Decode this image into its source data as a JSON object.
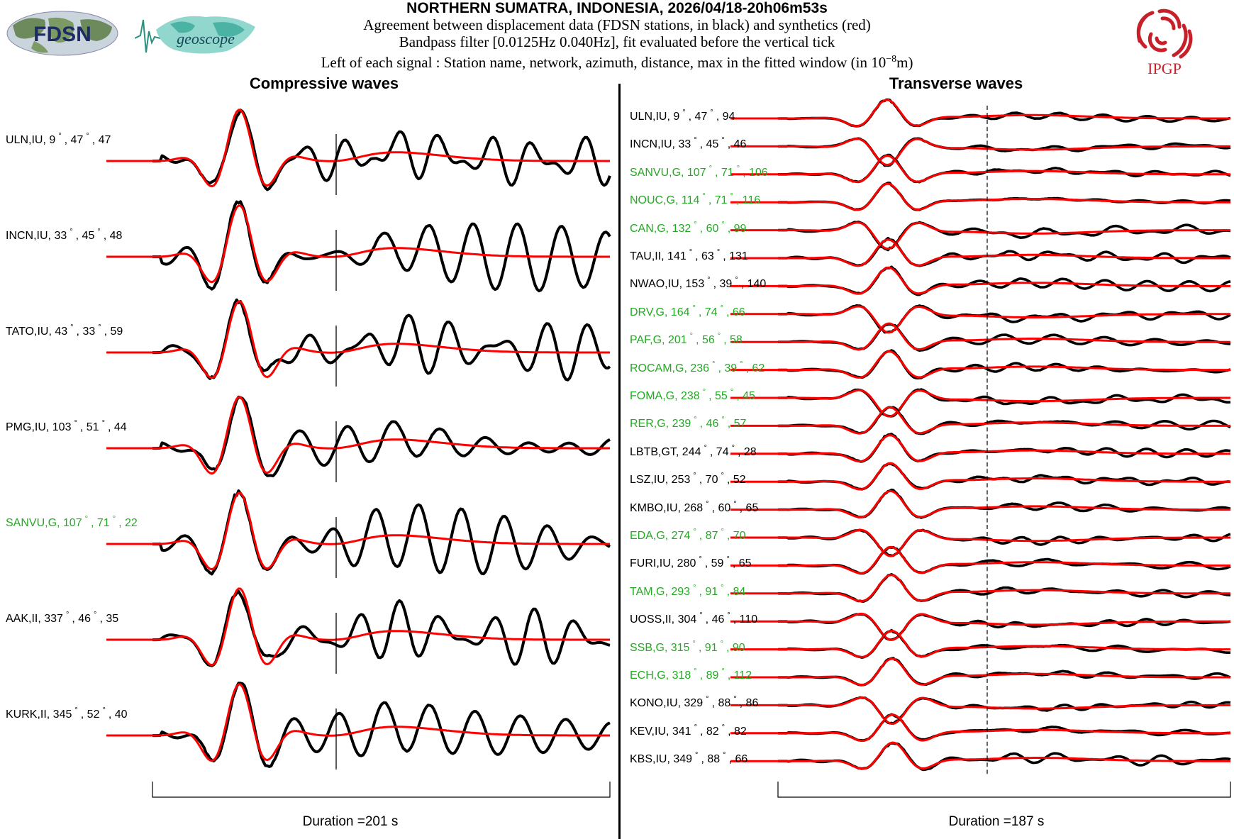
{
  "header": {
    "title": "NORTHERN SUMATRA, INDONESIA, 2026/04/18-20h06m53s",
    "line1": "Agreement between displacement data (FDSN stations, in black) and synthetics (red)",
    "line2": "Bandpass filter [0.0125Hz 0.040Hz], fit evaluated before the vertical tick",
    "line3": "Left of each signal : Station name, network, azimuth, distance, max in the fitted window (in 10",
    "line3_exp": "−8",
    "line3_end": "m)"
  },
  "logos": {
    "fdsn": "FDSN",
    "geoscope": "geoscope",
    "ipgp": "IPGP"
  },
  "colors": {
    "data": "#000000",
    "synthetic": "#ff0000",
    "geoscope_station": "#22aa22",
    "ipgp": "#c8202a",
    "geoscope_logo": "#3ab0a0"
  },
  "chart_data": [
    {
      "type": "line",
      "title": "Compressive waves",
      "duration_label": "Duration =201 s",
      "duration_s": 201,
      "series": [
        "data",
        "synthetic"
      ],
      "stations": [
        {
          "label": "ULN,IU, 9",
          "az": 9,
          "dist": 47,
          "max": 47,
          "color": "black"
        },
        {
          "label": "INCN,IU, 33",
          "az": 33,
          "dist": 45,
          "max": 48,
          "color": "black"
        },
        {
          "label": "TATO,IU, 43",
          "az": 43,
          "dist": 33,
          "max": 59,
          "color": "black"
        },
        {
          "label": "PMG,IU, 103",
          "az": 103,
          "dist": 51,
          "max": 44,
          "color": "black"
        },
        {
          "label": "SANVU,G, 107",
          "az": 107,
          "dist": 71,
          "max": 22,
          "color": "green"
        },
        {
          "label": "AAK,II, 337",
          "az": 337,
          "dist": 46,
          "max": 35,
          "color": "black"
        },
        {
          "label": "KURK,II, 345",
          "az": 345,
          "dist": 52,
          "max": 40,
          "color": "black"
        }
      ]
    },
    {
      "type": "line",
      "title": "Transverse waves",
      "duration_label": "Duration =187 s",
      "duration_s": 187,
      "series": [
        "data",
        "synthetic"
      ],
      "stations": [
        {
          "label": "ULN,IU, 9",
          "az": 9,
          "dist": 47,
          "max": 94,
          "color": "black"
        },
        {
          "label": "INCN,IU, 33",
          "az": 33,
          "dist": 45,
          "max": 46,
          "color": "black"
        },
        {
          "label": "SANVU,G, 107",
          "az": 107,
          "dist": 71,
          "max": 106,
          "color": "green"
        },
        {
          "label": "NOUC,G, 114",
          "az": 114,
          "dist": 71,
          "max": 116,
          "color": "green"
        },
        {
          "label": "CAN,G, 132",
          "az": 132,
          "dist": 60,
          "max": 99,
          "color": "green"
        },
        {
          "label": "TAU,II, 141",
          "az": 141,
          "dist": 63,
          "max": 131,
          "color": "black"
        },
        {
          "label": "NWAO,IU, 153",
          "az": 153,
          "dist": 39,
          "max": 140,
          "color": "black"
        },
        {
          "label": "DRV,G, 164",
          "az": 164,
          "dist": 74,
          "max": 66,
          "color": "green"
        },
        {
          "label": "PAF,G, 201",
          "az": 201,
          "dist": 56,
          "max": 58,
          "color": "green"
        },
        {
          "label": "ROCAM,G, 236",
          "az": 236,
          "dist": 39,
          "max": 62,
          "color": "green"
        },
        {
          "label": "FOMA,G, 238",
          "az": 238,
          "dist": 55,
          "max": 45,
          "color": "green"
        },
        {
          "label": "RER,G, 239",
          "az": 239,
          "dist": 46,
          "max": 57,
          "color": "green"
        },
        {
          "label": "LBTB,GT, 244",
          "az": 244,
          "dist": 74,
          "max": 28,
          "color": "black"
        },
        {
          "label": "LSZ,IU, 253",
          "az": 253,
          "dist": 70,
          "max": 52,
          "color": "black"
        },
        {
          "label": "KMBO,IU, 268",
          "az": 268,
          "dist": 60,
          "max": 65,
          "color": "black"
        },
        {
          "label": "EDA,G, 274",
          "az": 274,
          "dist": 87,
          "max": 70,
          "color": "green"
        },
        {
          "label": "FURI,IU, 280",
          "az": 280,
          "dist": 59,
          "max": 65,
          "color": "black"
        },
        {
          "label": "TAM,G, 293",
          "az": 293,
          "dist": 91,
          "max": 84,
          "color": "green"
        },
        {
          "label": "UOSS,II, 304",
          "az": 304,
          "dist": 46,
          "max": 110,
          "color": "black"
        },
        {
          "label": "SSB,G, 315",
          "az": 315,
          "dist": 91,
          "max": 90,
          "color": "green"
        },
        {
          "label": "ECH,G, 318",
          "az": 318,
          "dist": 89,
          "max": 112,
          "color": "green"
        },
        {
          "label": "KONO,IU, 329",
          "az": 329,
          "dist": 88,
          "max": 86,
          "color": "black"
        },
        {
          "label": "KEV,IU, 341",
          "az": 341,
          "dist": 82,
          "max": 82,
          "color": "black"
        },
        {
          "label": "KBS,IU, 349",
          "az": 349,
          "dist": 88,
          "max": 66,
          "color": "black"
        }
      ]
    }
  ]
}
